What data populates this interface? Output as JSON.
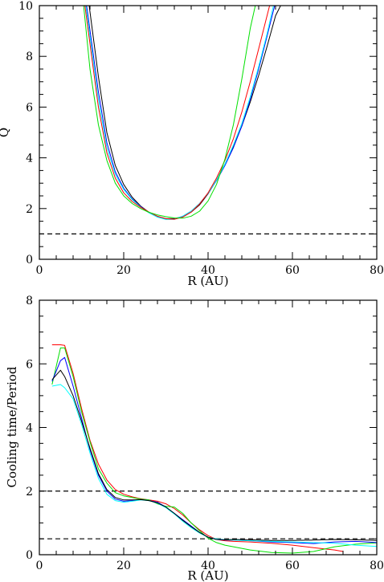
{
  "chart_data": [
    {
      "type": "line",
      "xlabel": "R (AU)",
      "ylabel": "Q",
      "xlim": [
        0,
        80
      ],
      "ylim": [
        0,
        10
      ],
      "xticks": [
        0,
        20,
        40,
        60,
        80
      ],
      "yticks": [
        0,
        2,
        4,
        6,
        8,
        10
      ],
      "grid": false,
      "hlines": [
        1
      ],
      "series": [
        {
          "color": "#000000",
          "x": [
            11.8,
            14,
            16,
            18,
            20,
            22,
            24,
            26,
            28,
            30,
            32,
            34,
            36,
            38,
            40,
            42,
            44,
            46,
            48,
            50,
            52,
            54,
            56,
            57.2
          ],
          "y": [
            10,
            7.2,
            5.0,
            3.7,
            2.95,
            2.45,
            2.1,
            1.85,
            1.68,
            1.6,
            1.6,
            1.68,
            1.86,
            2.15,
            2.58,
            3.12,
            3.75,
            4.45,
            5.25,
            6.2,
            7.25,
            8.4,
            9.6,
            10
          ]
        },
        {
          "color": "#0000ff",
          "x": [
            11.2,
            14,
            16,
            18,
            20,
            22,
            24,
            26,
            28,
            30,
            32,
            34,
            36,
            38,
            40,
            42,
            44,
            46,
            48,
            50,
            52,
            54,
            55.8
          ],
          "y": [
            10,
            6.6,
            4.6,
            3.45,
            2.8,
            2.38,
            2.08,
            1.84,
            1.67,
            1.58,
            1.59,
            1.7,
            1.9,
            2.2,
            2.6,
            3.1,
            3.7,
            4.4,
            5.25,
            6.3,
            7.5,
            8.8,
            10
          ]
        },
        {
          "color": "#00ffff",
          "x": [
            11.0,
            14,
            16,
            18,
            20,
            22,
            24,
            26,
            28,
            30,
            32,
            34,
            36,
            38,
            40,
            42,
            44,
            46,
            48,
            50,
            52,
            54,
            55.5
          ],
          "y": [
            10,
            6.3,
            4.4,
            3.35,
            2.75,
            2.35,
            2.06,
            1.83,
            1.66,
            1.57,
            1.58,
            1.7,
            1.9,
            2.2,
            2.6,
            3.12,
            3.75,
            4.5,
            5.35,
            6.4,
            7.6,
            8.9,
            10
          ]
        },
        {
          "color": "#ff0000",
          "x": [
            10.8,
            14,
            16,
            18,
            20,
            22,
            24,
            26,
            28,
            30,
            32,
            34,
            36,
            38,
            40,
            42,
            44,
            46,
            48,
            50,
            52,
            54.6
          ],
          "y": [
            10,
            6.0,
            4.2,
            3.2,
            2.62,
            2.28,
            2.05,
            1.86,
            1.7,
            1.6,
            1.58,
            1.66,
            1.86,
            2.18,
            2.62,
            3.2,
            3.9,
            4.75,
            5.8,
            7.0,
            8.3,
            10
          ]
        },
        {
          "color": "#00e000",
          "x": [
            10.5,
            12,
            14,
            16,
            18,
            20,
            22,
            24,
            26,
            28,
            30,
            32,
            34,
            36,
            38,
            40,
            42,
            44,
            46,
            48,
            50,
            51.2
          ],
          "y": [
            10,
            7.5,
            5.3,
            3.9,
            3.0,
            2.5,
            2.2,
            2.0,
            1.85,
            1.75,
            1.68,
            1.63,
            1.62,
            1.7,
            1.9,
            2.3,
            2.95,
            3.95,
            5.3,
            7.1,
            9.1,
            10
          ]
        }
      ]
    },
    {
      "type": "line",
      "xlabel": "R (AU)",
      "ylabel": "Cooling time/Period",
      "xlim": [
        0,
        80
      ],
      "ylim": [
        0,
        8
      ],
      "xticks": [
        0,
        20,
        40,
        60,
        80
      ],
      "yticks": [
        0,
        2,
        4,
        6,
        8
      ],
      "grid": false,
      "hlines": [
        2,
        0.5
      ],
      "series": [
        {
          "color": "#ff0000",
          "x": [
            3,
            5,
            6,
            8,
            10,
            12,
            14,
            16,
            18,
            20,
            22,
            24,
            26,
            28,
            30,
            32,
            34,
            36,
            38,
            40,
            42,
            44,
            46,
            48,
            50,
            55,
            60,
            65,
            70,
            72
          ],
          "y": [
            6.6,
            6.6,
            6.58,
            5.7,
            4.6,
            3.6,
            2.85,
            2.35,
            2.05,
            1.9,
            1.82,
            1.76,
            1.72,
            1.68,
            1.6,
            1.45,
            1.25,
            1.0,
            0.78,
            0.6,
            0.48,
            0.44,
            0.42,
            0.41,
            0.4,
            0.36,
            0.3,
            0.22,
            0.15,
            0.1
          ]
        },
        {
          "color": "#00e000",
          "x": [
            3,
            5,
            6,
            8,
            10,
            12,
            14,
            16,
            18,
            20,
            22,
            24,
            26,
            28,
            30,
            32,
            34,
            36,
            38,
            40,
            42,
            44,
            46,
            50,
            55,
            60,
            65,
            70,
            75,
            80
          ],
          "y": [
            5.35,
            6.5,
            6.5,
            5.6,
            4.5,
            3.55,
            2.7,
            2.25,
            1.95,
            1.85,
            1.8,
            1.75,
            1.72,
            1.6,
            1.52,
            1.5,
            1.3,
            1.0,
            0.75,
            0.52,
            0.38,
            0.3,
            0.25,
            0.15,
            0.07,
            0.05,
            0.1,
            0.25,
            0.33,
            0.37
          ]
        },
        {
          "color": "#0000ff",
          "x": [
            3,
            5,
            6,
            8,
            10,
            12,
            14,
            16,
            18,
            20,
            22,
            24,
            26,
            28,
            30,
            32,
            34,
            36,
            38,
            40,
            42,
            44,
            46,
            50,
            55,
            60,
            65,
            70,
            75,
            80
          ],
          "y": [
            5.45,
            6.1,
            6.2,
            5.3,
            4.3,
            3.3,
            2.5,
            2.0,
            1.75,
            1.68,
            1.7,
            1.73,
            1.7,
            1.65,
            1.5,
            1.3,
            1.1,
            0.9,
            0.7,
            0.55,
            0.48,
            0.46,
            0.46,
            0.44,
            0.4,
            0.38,
            0.35,
            0.4,
            0.42,
            0.38
          ]
        },
        {
          "color": "#00ffff",
          "x": [
            3,
            5,
            6,
            8,
            10,
            12,
            14,
            16,
            18,
            20,
            22,
            24,
            26,
            28,
            30,
            32,
            34,
            36,
            38,
            40,
            42,
            44,
            46,
            50,
            55,
            60,
            65,
            70,
            75,
            80
          ],
          "y": [
            5.3,
            5.35,
            5.25,
            4.9,
            4.1,
            3.2,
            2.4,
            1.9,
            1.7,
            1.65,
            1.68,
            1.72,
            1.7,
            1.62,
            1.48,
            1.28,
            1.05,
            0.85,
            0.68,
            0.55,
            0.5,
            0.47,
            0.46,
            0.44,
            0.42,
            0.4,
            0.38,
            0.36,
            0.3,
            0.26
          ]
        },
        {
          "color": "#000000",
          "x": [
            3,
            5,
            6,
            8,
            10,
            12,
            14,
            16,
            18,
            20,
            22,
            24,
            26,
            28,
            30,
            32,
            34,
            36,
            38,
            40,
            42,
            44,
            46,
            50,
            55,
            60,
            65,
            70,
            75,
            80
          ],
          "y": [
            5.5,
            5.8,
            5.6,
            5.0,
            4.2,
            3.35,
            2.55,
            2.05,
            1.8,
            1.72,
            1.72,
            1.73,
            1.7,
            1.63,
            1.5,
            1.3,
            1.08,
            0.88,
            0.7,
            0.55,
            0.48,
            0.47,
            0.48,
            0.47,
            0.45,
            0.45,
            0.46,
            0.48,
            0.47,
            0.45
          ]
        }
      ]
    }
  ]
}
